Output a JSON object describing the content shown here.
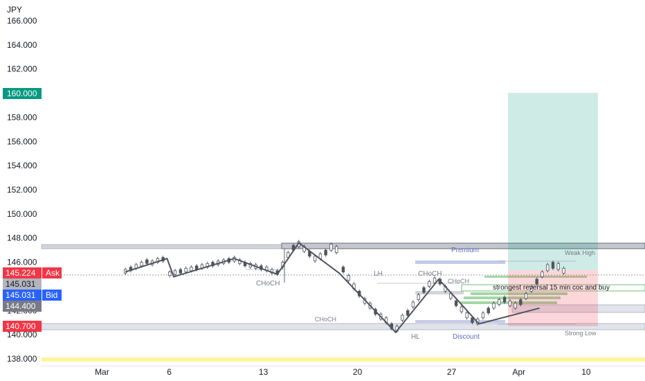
{
  "chart_data": {
    "type": "candlestick",
    "currency_label": "JPY",
    "ylim": [
      137.5,
      166.5
    ],
    "y_ticks": [
      "166.000",
      "164.000",
      "162.000",
      "158.000",
      "156.000",
      "154.000",
      "152.000",
      "150.000",
      "148.000",
      "146.000",
      "142.000",
      "140.000",
      "138.000"
    ],
    "x_ticks": [
      {
        "label": "Mar",
        "day": 1
      },
      {
        "label": "6",
        "day": 6
      },
      {
        "label": "13",
        "day": 13
      },
      {
        "label": "20",
        "day": 20
      },
      {
        "label": "27",
        "day": 27
      },
      {
        "label": "Apr",
        "day": 32
      },
      {
        "label": "10",
        "day": 37
      }
    ],
    "badges": {
      "target": {
        "value": 160.0,
        "text": "160.000",
        "color": "#089981"
      },
      "ask": {
        "value": 145.224,
        "text": "145.224",
        "label": "Ask",
        "color": "#f23645"
      },
      "mid": {
        "value": 145.031,
        "text": "145.031",
        "color": "#b2b5be"
      },
      "bid": {
        "value": 145.031,
        "text": "145.031",
        "label": "Bid",
        "color": "#2962ff"
      },
      "entry": {
        "value": 144.4,
        "text": "144.400",
        "color": "#787b86"
      },
      "stop": {
        "value": 140.7,
        "text": "140.700",
        "color": "#f23645"
      }
    },
    "annotations": {
      "premium": "Premium",
      "weak_high": "Weak High",
      "lh": "LH",
      "choch_1": "CHoCH",
      "choch_2": "CHoCH",
      "choch_3": "CHoCH",
      "choch_4": "CHoCH",
      "note": "strongest reversal 15 min coc and buy",
      "hl": "HL",
      "discount": "Discount",
      "strong_low": "Strong Low"
    },
    "zigzag": [
      {
        "day": 0,
        "price": 145.2
      },
      {
        "day": 3.1,
        "price": 146.3
      },
      {
        "day": 3.6,
        "price": 144.8
      },
      {
        "day": 8.1,
        "price": 146.3
      },
      {
        "day": 11.3,
        "price": 145.0
      },
      {
        "day": 12.9,
        "price": 147.6
      },
      {
        "day": 15.9,
        "price": 145.1
      },
      {
        "day": 20.1,
        "price": 140.2
      },
      {
        "day": 23.3,
        "price": 144.6
      },
      {
        "day": 26.3,
        "price": 140.9
      },
      {
        "day": 30.8,
        "price": 142.2
      }
    ],
    "candles_compact": [
      [
        0,
        145.1,
        145.4
      ],
      [
        0.4,
        145.3,
        145.6
      ],
      [
        0.8,
        145.5,
        145.8
      ],
      [
        1.2,
        145.7,
        146.0
      ],
      [
        1.6,
        145.9,
        146.2
      ],
      [
        2.0,
        145.8,
        146.1
      ],
      [
        2.4,
        146.0,
        146.3
      ],
      [
        2.8,
        146.1,
        146.4
      ],
      [
        3.3,
        144.9,
        145.2
      ],
      [
        3.7,
        145.0,
        145.3
      ],
      [
        4.1,
        145.1,
        145.4
      ],
      [
        4.5,
        145.2,
        145.5
      ],
      [
        4.9,
        145.3,
        145.6
      ],
      [
        5.3,
        145.4,
        145.7
      ],
      [
        5.7,
        145.5,
        145.8
      ],
      [
        6.1,
        145.6,
        145.9
      ],
      [
        6.5,
        145.7,
        146.0
      ],
      [
        6.9,
        145.8,
        146.1
      ],
      [
        7.3,
        145.9,
        146.2
      ],
      [
        7.7,
        146.0,
        146.3
      ],
      [
        8.1,
        146.1,
        146.4
      ],
      [
        8.5,
        145.9,
        146.2
      ],
      [
        8.9,
        145.7,
        146.0
      ],
      [
        9.3,
        145.6,
        145.9
      ],
      [
        9.7,
        145.5,
        145.8
      ],
      [
        10.1,
        145.4,
        145.7
      ],
      [
        10.5,
        145.3,
        145.6
      ],
      [
        10.9,
        145.1,
        145.4
      ],
      [
        11.3,
        145.0,
        145.3
      ],
      [
        11.7,
        145.6,
        146.0
      ],
      [
        12.1,
        146.4,
        146.8
      ],
      [
        12.5,
        147.0,
        147.4
      ],
      [
        12.9,
        147.3,
        147.7
      ],
      [
        13.3,
        146.9,
        147.3
      ],
      [
        13.7,
        146.5,
        146.9
      ],
      [
        14.1,
        146.1,
        146.5
      ],
      [
        14.5,
        146.3,
        146.7
      ],
      [
        14.9,
        146.6,
        147.0
      ],
      [
        15.3,
        147.0,
        147.5
      ],
      [
        15.7,
        146.8,
        147.3
      ],
      [
        16.2,
        145.2,
        145.6
      ],
      [
        16.6,
        144.5,
        144.9
      ],
      [
        17.0,
        143.8,
        144.2
      ],
      [
        17.4,
        143.2,
        143.6
      ],
      [
        17.8,
        142.6,
        143.0
      ],
      [
        18.2,
        142.2,
        142.6
      ],
      [
        18.6,
        141.7,
        142.1
      ],
      [
        19.0,
        141.3,
        141.7
      ],
      [
        19.4,
        141.0,
        141.4
      ],
      [
        19.8,
        140.5,
        140.9
      ],
      [
        20.2,
        140.3,
        140.7
      ],
      [
        20.6,
        141.2,
        141.6
      ],
      [
        21.0,
        141.6,
        142.0
      ],
      [
        21.4,
        142.3,
        142.7
      ],
      [
        21.8,
        142.9,
        143.3
      ],
      [
        22.2,
        143.5,
        143.9
      ],
      [
        22.6,
        144.0,
        144.4
      ],
      [
        23.0,
        144.3,
        144.7
      ],
      [
        23.4,
        144.2,
        144.6
      ],
      [
        23.8,
        143.6,
        144.0
      ],
      [
        24.2,
        143.0,
        143.4
      ],
      [
        24.6,
        142.4,
        142.8
      ],
      [
        25.0,
        141.9,
        142.3
      ],
      [
        25.4,
        141.4,
        141.8
      ],
      [
        25.8,
        141.0,
        141.4
      ],
      [
        26.2,
        140.9,
        141.3
      ],
      [
        26.6,
        141.4,
        141.8
      ],
      [
        27.0,
        141.8,
        142.2
      ],
      [
        27.4,
        142.2,
        142.6
      ],
      [
        27.8,
        142.5,
        142.9
      ],
      [
        28.2,
        142.7,
        143.1
      ],
      [
        28.6,
        142.4,
        142.8
      ],
      [
        29.0,
        142.2,
        142.6
      ],
      [
        29.4,
        142.5,
        142.9
      ],
      [
        29.8,
        143.0,
        143.4
      ],
      [
        30.2,
        143.6,
        144.0
      ],
      [
        30.6,
        144.2,
        144.6
      ],
      [
        31.0,
        144.8,
        145.2
      ],
      [
        31.4,
        145.3,
        145.8
      ],
      [
        31.8,
        145.5,
        146.0
      ],
      [
        32.2,
        145.4,
        145.9
      ],
      [
        32.6,
        145.1,
        145.5
      ]
    ]
  }
}
